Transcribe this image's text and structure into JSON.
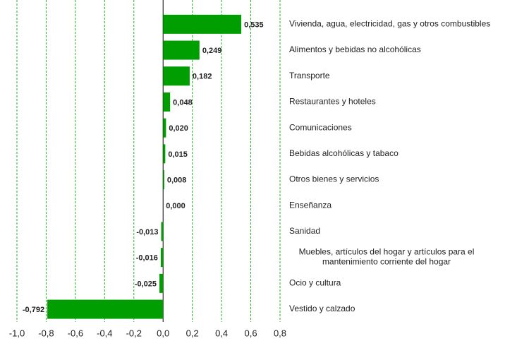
{
  "chart_data": {
    "type": "barh",
    "categories": [
      "Vivienda, agua, electricidad, gas y otros combustibles",
      "Alimentos y bebidas no alcohólicas",
      "Transporte",
      "Restaurantes y hoteles",
      "Comunicaciones",
      "Bebidas alcohólicas y tabaco",
      "Otros bienes y servicios",
      "Enseñanza",
      "Sanidad",
      "Muebles, artículos del hogar y artículos para el\nmantenimiento corriente del hogar",
      "Ocio y cultura",
      "Vestido y calzado"
    ],
    "values": [
      0.535,
      0.249,
      0.182,
      0.048,
      0.02,
      0.015,
      0.008,
      0.0,
      -0.013,
      -0.016,
      -0.025,
      -0.792
    ],
    "value_labels": [
      "0,535",
      "0,249",
      "0,182",
      "0,048",
      "0,020",
      "0,015",
      "0,008",
      "0,000",
      "-0,013",
      "-0,016",
      "-0,025",
      "-0,792"
    ],
    "color": "#009e00",
    "xlim": [
      -1.0,
      0.8
    ],
    "xticks": [
      {
        "value": -1.0,
        "label": "-1,0"
      },
      {
        "value": -0.8,
        "label": "-0,8"
      },
      {
        "value": -0.6,
        "label": "-0,6"
      },
      {
        "value": -0.4,
        "label": "-0,4"
      },
      {
        "value": -0.2,
        "label": "-0,2"
      },
      {
        "value": 0.0,
        "label": "0,0"
      },
      {
        "value": 0.2,
        "label": "0,2"
      },
      {
        "value": 0.4,
        "label": "0,4"
      },
      {
        "value": 0.6,
        "label": "0,6"
      },
      {
        "value": 0.8,
        "label": "0,8"
      }
    ],
    "grid": true
  }
}
